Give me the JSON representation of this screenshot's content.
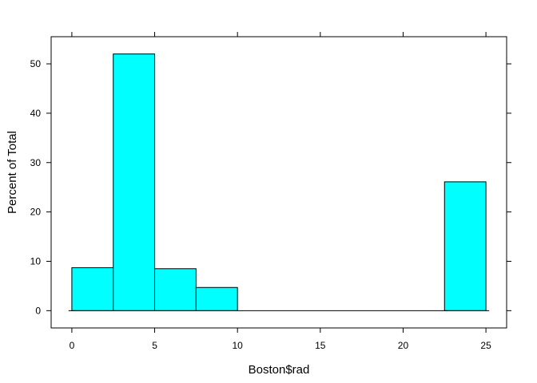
{
  "chart_data": {
    "type": "bar",
    "xlabel": "Boston$rad",
    "ylabel": "Percent of Total",
    "xlim": [
      -1.25,
      26.25
    ],
    "ylim": [
      -3.5,
      55.5
    ],
    "x_ticks": [
      0,
      5,
      10,
      15,
      20,
      25
    ],
    "y_ticks": [
      0,
      10,
      20,
      30,
      40,
      50
    ],
    "bins": [
      {
        "x0": 0,
        "x1": 2.5,
        "value": 8.7
      },
      {
        "x0": 2.5,
        "x1": 5,
        "value": 52.0
      },
      {
        "x0": 5,
        "x1": 7.5,
        "value": 8.5
      },
      {
        "x0": 7.5,
        "x1": 10,
        "value": 4.7
      },
      {
        "x0": 10,
        "x1": 12.5,
        "value": 0
      },
      {
        "x0": 12.5,
        "x1": 15,
        "value": 0
      },
      {
        "x0": 15,
        "x1": 17.5,
        "value": 0
      },
      {
        "x0": 17.5,
        "x1": 20,
        "value": 0
      },
      {
        "x0": 20,
        "x1": 22.5,
        "value": 0
      },
      {
        "x0": 22.5,
        "x1": 25,
        "value": 26.1
      }
    ],
    "baseline_range": [
      -0.2,
      25.2
    ],
    "bar_fill": "#00ffff",
    "bar_stroke": "#000000",
    "grid": false,
    "legend": "none"
  }
}
